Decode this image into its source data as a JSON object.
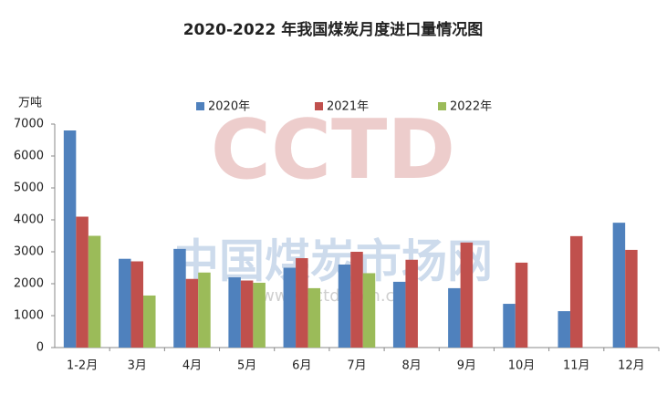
{
  "chart_data": {
    "type": "bar",
    "title": "2020-2022 年我国煤炭月度进口量情况图",
    "y_label": "万吨",
    "categories": [
      "1-2月",
      "3月",
      "4月",
      "5月",
      "6月",
      "7月",
      "8月",
      "9月",
      "10月",
      "11月",
      "12月"
    ],
    "series": [
      {
        "name": "2020年",
        "color": "#4f81bd",
        "values": [
          6800,
          2780,
          3090,
          2200,
          2500,
          2600,
          2060,
          1860,
          1370,
          1140,
          3910
        ]
      },
      {
        "name": "2021年",
        "color": "#c0504d",
        "values": [
          4100,
          2700,
          2150,
          2100,
          2800,
          3000,
          2750,
          3290,
          2660,
          3490,
          3060
        ]
      },
      {
        "name": "2022年",
        "color": "#9bbb59",
        "values": [
          3500,
          1630,
          2350,
          2030,
          1860,
          2330,
          null,
          null,
          null,
          null,
          null
        ]
      }
    ],
    "ylim": [
      0,
      7000
    ],
    "yticks": [
      0,
      1000,
      2000,
      3000,
      4000,
      5000,
      6000,
      7000
    ],
    "legend": "top",
    "watermark": [
      "CCTD",
      "中国煤炭市场网",
      "www.cctd.com.cn"
    ]
  }
}
